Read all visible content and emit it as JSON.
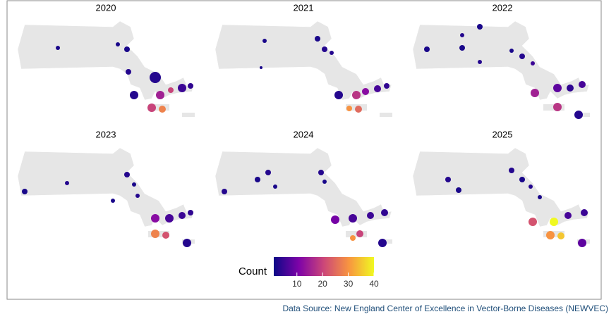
{
  "panels": [
    {
      "title": "2020",
      "counts": [
        2,
        2,
        2,
        3,
        3,
        3,
        15,
        20,
        5,
        4,
        20,
        28
      ]
    },
    {
      "title": "2021",
      "counts": [
        2,
        2,
        3,
        3,
        2,
        3,
        18,
        12,
        6,
        4,
        25,
        30
      ]
    },
    {
      "title": "2022",
      "counts": [
        2,
        3,
        2,
        2,
        3,
        2,
        3,
        5,
        8,
        4,
        6,
        15,
        18,
        3
      ]
    },
    {
      "title": "2023",
      "counts": [
        2,
        3,
        2,
        3,
        2,
        3,
        12,
        6,
        5,
        4,
        28,
        22,
        3
      ]
    },
    {
      "title": "2024",
      "counts": [
        3,
        2,
        3,
        2,
        3,
        2,
        10,
        6,
        5,
        4,
        20,
        30,
        3
      ]
    },
    {
      "title": "2025",
      "counts": [
        3,
        2,
        3,
        2,
        3,
        2,
        22,
        40,
        6,
        5,
        30,
        35,
        8
      ]
    }
  ],
  "legend": {
    "title": "Count",
    "range": [
      1,
      40
    ],
    "ticks": [
      10,
      20,
      30,
      40
    ]
  },
  "source": "Data Source: New England Center of Excellence in Vector-Borne Diseases (NEWVEC)"
}
